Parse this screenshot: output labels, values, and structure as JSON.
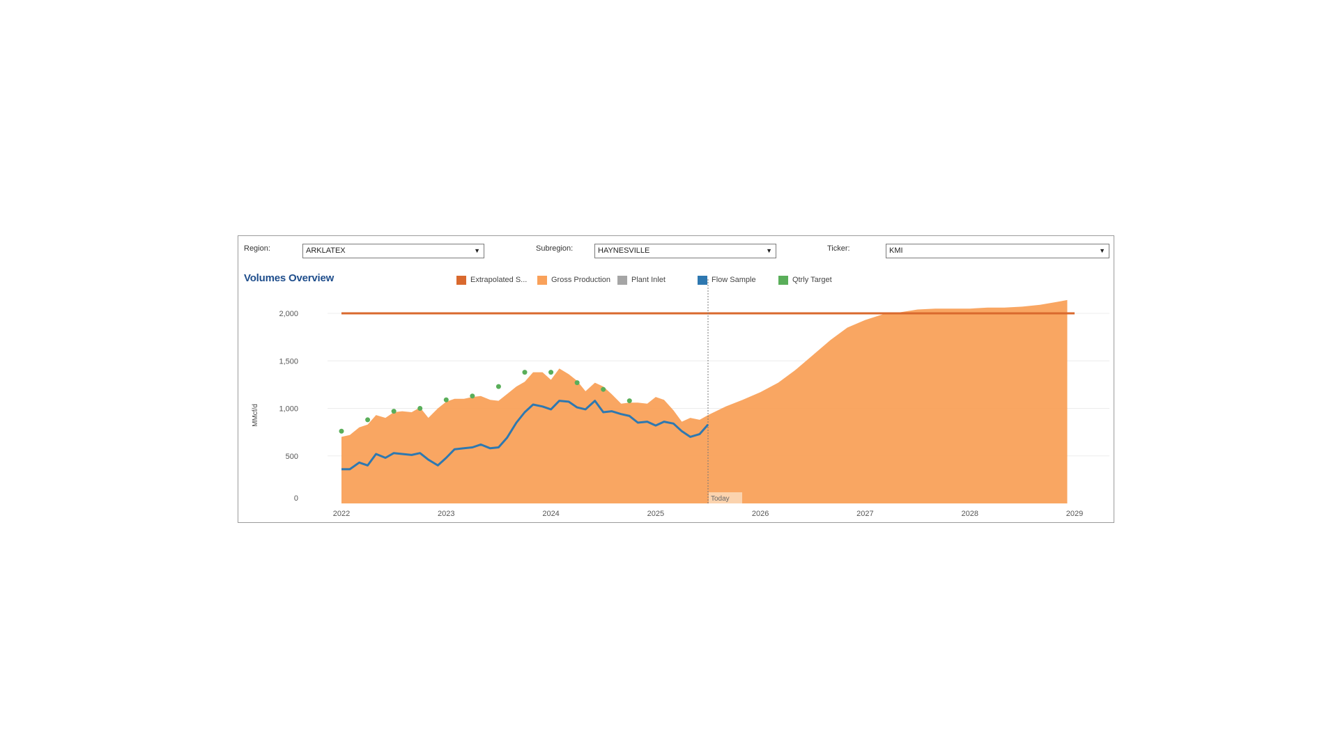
{
  "filters": {
    "region": {
      "label": "Region:",
      "value": "ARKLATEX"
    },
    "subregion": {
      "label": "Subregion:",
      "value": "HAYNESVILLE"
    },
    "ticker": {
      "label": "Ticker:",
      "value": "KMI"
    }
  },
  "title": "Volumes Overview",
  "legend": [
    {
      "label": "Extrapolated S...",
      "color": "#d9692e"
    },
    {
      "label": "Gross Production",
      "color": "#f9a15a"
    },
    {
      "label": "Plant Inlet",
      "color": "#a5a5a5"
    },
    {
      "label": "Flow Sample",
      "color": "#2e78b0"
    },
    {
      "label": "Qtrly Target",
      "color": "#5aae5a"
    }
  ],
  "today_label": "Today",
  "chart_data": {
    "type": "area",
    "title": "Volumes Overview",
    "ylabel": "MMcf/d",
    "xlabel": "",
    "xlim": [
      2022.0,
      2029.0
    ],
    "ylim": [
      0,
      2000
    ],
    "yticks": [
      0,
      500,
      1000,
      1500,
      2000
    ],
    "ytick_labels": [
      "0",
      "500",
      "1,000",
      "1,500",
      "2,000"
    ],
    "xticks": [
      2022,
      2023,
      2024,
      2025,
      2026,
      2027,
      2028,
      2029
    ],
    "xtick_labels": [
      "2022",
      "2023",
      "2024",
      "2025",
      "2026",
      "2027",
      "2028",
      "2029"
    ],
    "today": 2025.5,
    "grid": true,
    "legend_position": "top",
    "series": [
      {
        "name": "Extrapolated S...",
        "type": "line",
        "color": "#d9692e",
        "x": [
          2022.0,
          2029.0
        ],
        "y": [
          2000,
          2000
        ]
      },
      {
        "name": "Gross Production",
        "type": "area",
        "color": "#f9a15a",
        "x": [
          2022.0,
          2022.08,
          2022.17,
          2022.25,
          2022.33,
          2022.42,
          2022.5,
          2022.58,
          2022.67,
          2022.75,
          2022.83,
          2022.92,
          2023.0,
          2023.08,
          2023.17,
          2023.25,
          2023.33,
          2023.42,
          2023.5,
          2023.58,
          2023.67,
          2023.75,
          2023.83,
          2023.92,
          2024.0,
          2024.08,
          2024.17,
          2024.25,
          2024.33,
          2024.42,
          2024.5,
          2024.58,
          2024.67,
          2024.75,
          2024.83,
          2024.92,
          2025.0,
          2025.08,
          2025.17,
          2025.25,
          2025.33,
          2025.42,
          2025.5,
          2025.67,
          2025.83,
          2026.0,
          2026.17,
          2026.33,
          2026.5,
          2026.67,
          2026.83,
          2027.0,
          2027.17,
          2027.33,
          2027.5,
          2027.67,
          2027.83,
          2028.0,
          2028.17,
          2028.33,
          2028.5,
          2028.67,
          2028.83,
          2028.93
        ],
        "y": [
          700,
          720,
          800,
          830,
          930,
          900,
          960,
          970,
          960,
          1010,
          900,
          1000,
          1070,
          1100,
          1100,
          1120,
          1130,
          1090,
          1080,
          1150,
          1230,
          1280,
          1380,
          1380,
          1300,
          1420,
          1360,
          1290,
          1180,
          1270,
          1230,
          1150,
          1050,
          1060,
          1060,
          1050,
          1120,
          1090,
          980,
          860,
          900,
          880,
          930,
          1020,
          1090,
          1170,
          1270,
          1400,
          1560,
          1720,
          1850,
          1930,
          1990,
          2010,
          2040,
          2050,
          2050,
          2050,
          2060,
          2060,
          2070,
          2090,
          2120,
          2140
        ]
      },
      {
        "name": "Flow Sample",
        "type": "line",
        "color": "#2e78b0",
        "x": [
          2022.0,
          2022.08,
          2022.17,
          2022.25,
          2022.33,
          2022.42,
          2022.5,
          2022.58,
          2022.67,
          2022.75,
          2022.83,
          2022.92,
          2023.0,
          2023.08,
          2023.17,
          2023.25,
          2023.33,
          2023.42,
          2023.5,
          2023.58,
          2023.67,
          2023.75,
          2023.83,
          2023.92,
          2024.0,
          2024.08,
          2024.17,
          2024.25,
          2024.33,
          2024.42,
          2024.5,
          2024.58,
          2024.67,
          2024.75,
          2024.83,
          2024.92,
          2025.0,
          2025.08,
          2025.17,
          2025.25,
          2025.33,
          2025.42,
          2025.5
        ],
        "y": [
          360,
          360,
          430,
          400,
          520,
          480,
          530,
          520,
          510,
          530,
          460,
          400,
          480,
          570,
          580,
          590,
          620,
          580,
          590,
          690,
          850,
          960,
          1040,
          1020,
          990,
          1080,
          1070,
          1010,
          990,
          1080,
          960,
          970,
          940,
          920,
          850,
          860,
          820,
          860,
          840,
          760,
          700,
          730,
          830
        ]
      },
      {
        "name": "Qtrly Target",
        "type": "scatter",
        "color": "#5aae5a",
        "x": [
          2022.0,
          2022.25,
          2022.5,
          2022.75,
          2023.0,
          2023.25,
          2023.5,
          2023.75,
          2024.0,
          2024.25,
          2024.5,
          2024.75
        ],
        "y": [
          760,
          880,
          970,
          1000,
          1090,
          1130,
          1230,
          1380,
          1380,
          1270,
          1200,
          1080
        ]
      }
    ]
  }
}
